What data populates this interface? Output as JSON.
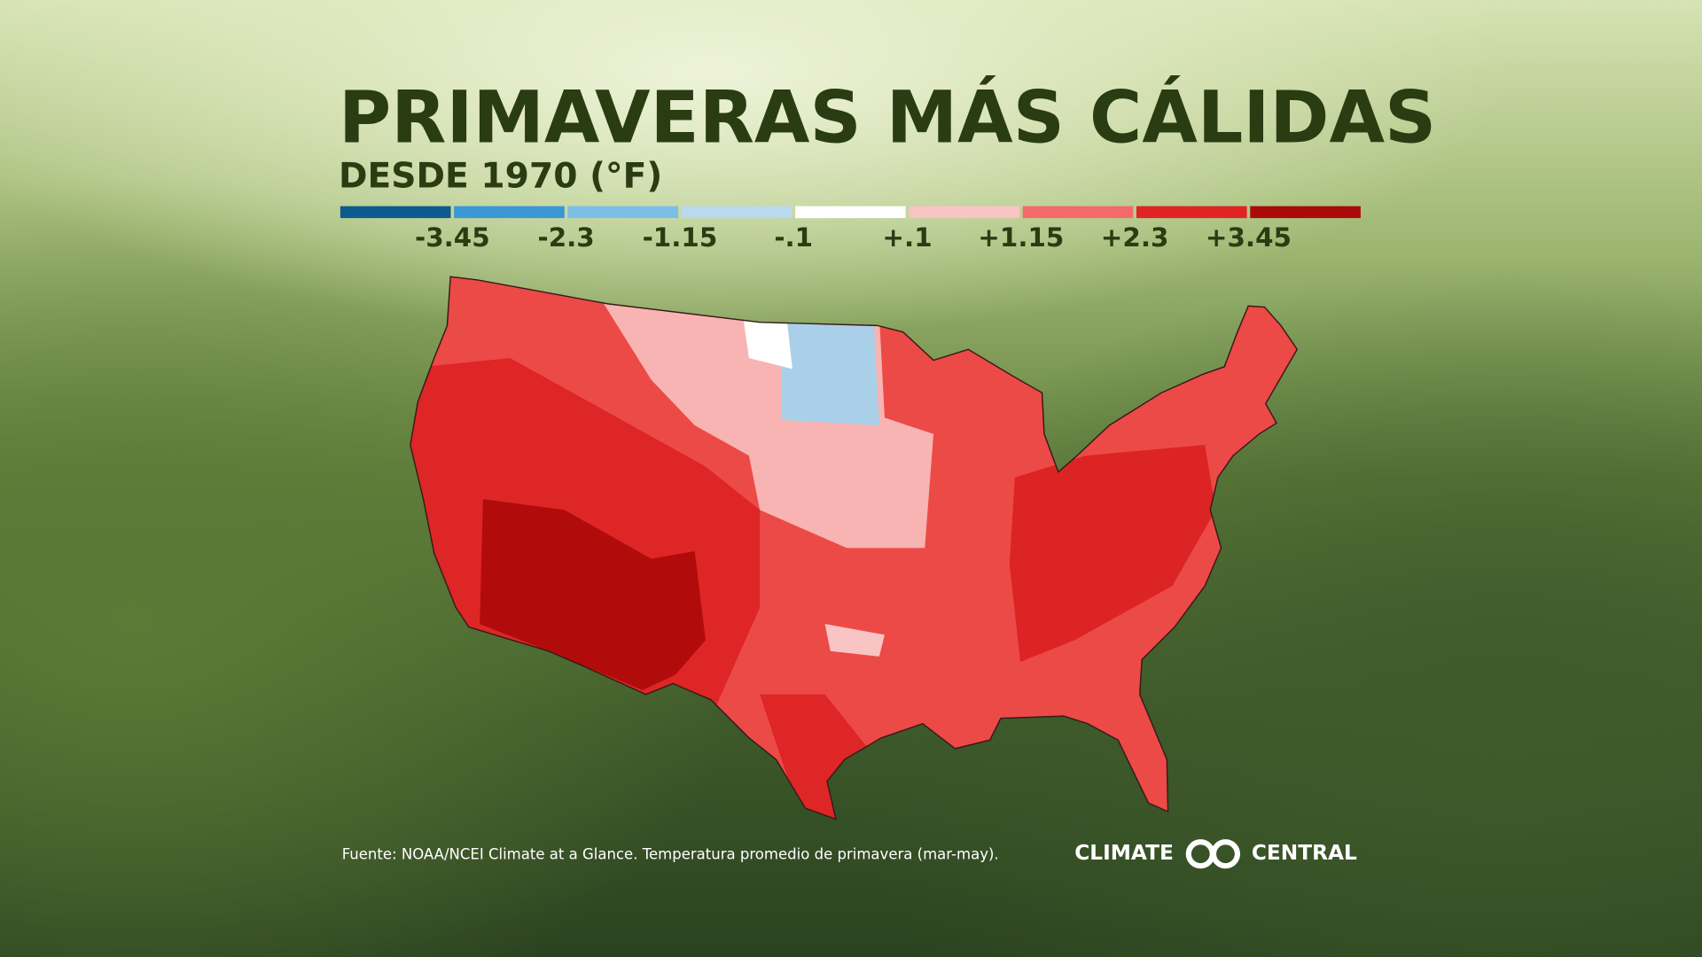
{
  "header": {
    "title": "PRIMAVERAS MÁS CÁLIDAS",
    "subtitle": "DESDE 1970 (°F)"
  },
  "legend": {
    "colors": [
      "#0d5a8f",
      "#3a98d4",
      "#7bbfe6",
      "#b9d9ec",
      "#ffffff",
      "#f9c4c4",
      "#f46a6a",
      "#e02323",
      "#ab0a0a"
    ],
    "labels": [
      "-3.45",
      "-2.3",
      "-1.15",
      "-.1",
      "+.1",
      "+1.15",
      "+2.3",
      "+3.45"
    ]
  },
  "footer": {
    "source": "Fuente: NOAA/NCEI Climate at a Glance. Temperatura promedio de primavera (mar-may).",
    "logo": [
      "CLIMATE",
      "CENTRAL"
    ]
  }
}
